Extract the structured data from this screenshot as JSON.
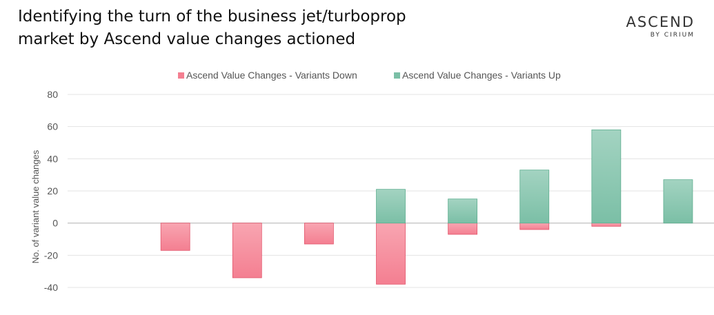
{
  "title_lines": [
    "Identifying the turn of the business jet/turboprop",
    "market by Ascend value changes actioned"
  ],
  "logo": {
    "main": "ASCEND",
    "sub": "BY CIRIUM"
  },
  "colors": {
    "down": "#f47f91",
    "down_light": "#f8a5b1",
    "down_stroke": "#e2566c",
    "up": "#7bbfa6",
    "up_light": "#a3d3c1",
    "up_stroke": "#5fae90",
    "grid": "#e3e3e3",
    "axis_text": "#555555"
  },
  "chart_data": {
    "type": "bar",
    "ylabel": "No. of variant value changes",
    "ylim": [
      -40,
      80
    ],
    "yticks": [
      80,
      60,
      40,
      20,
      0,
      -20,
      -40
    ],
    "grid": true,
    "legend_position": "top-center",
    "categories": [
      "",
      "",
      "",
      "",
      "",
      "",
      "",
      "",
      ""
    ],
    "series": [
      {
        "name": "Ascend Value Changes - Variants Down",
        "values": [
          null,
          -17,
          -34,
          -13,
          -38,
          -7,
          -4,
          -2,
          null
        ]
      },
      {
        "name": "Ascend Value Changes - Variants Up",
        "values": [
          null,
          null,
          null,
          null,
          21,
          15,
          33,
          58,
          27
        ]
      }
    ]
  }
}
